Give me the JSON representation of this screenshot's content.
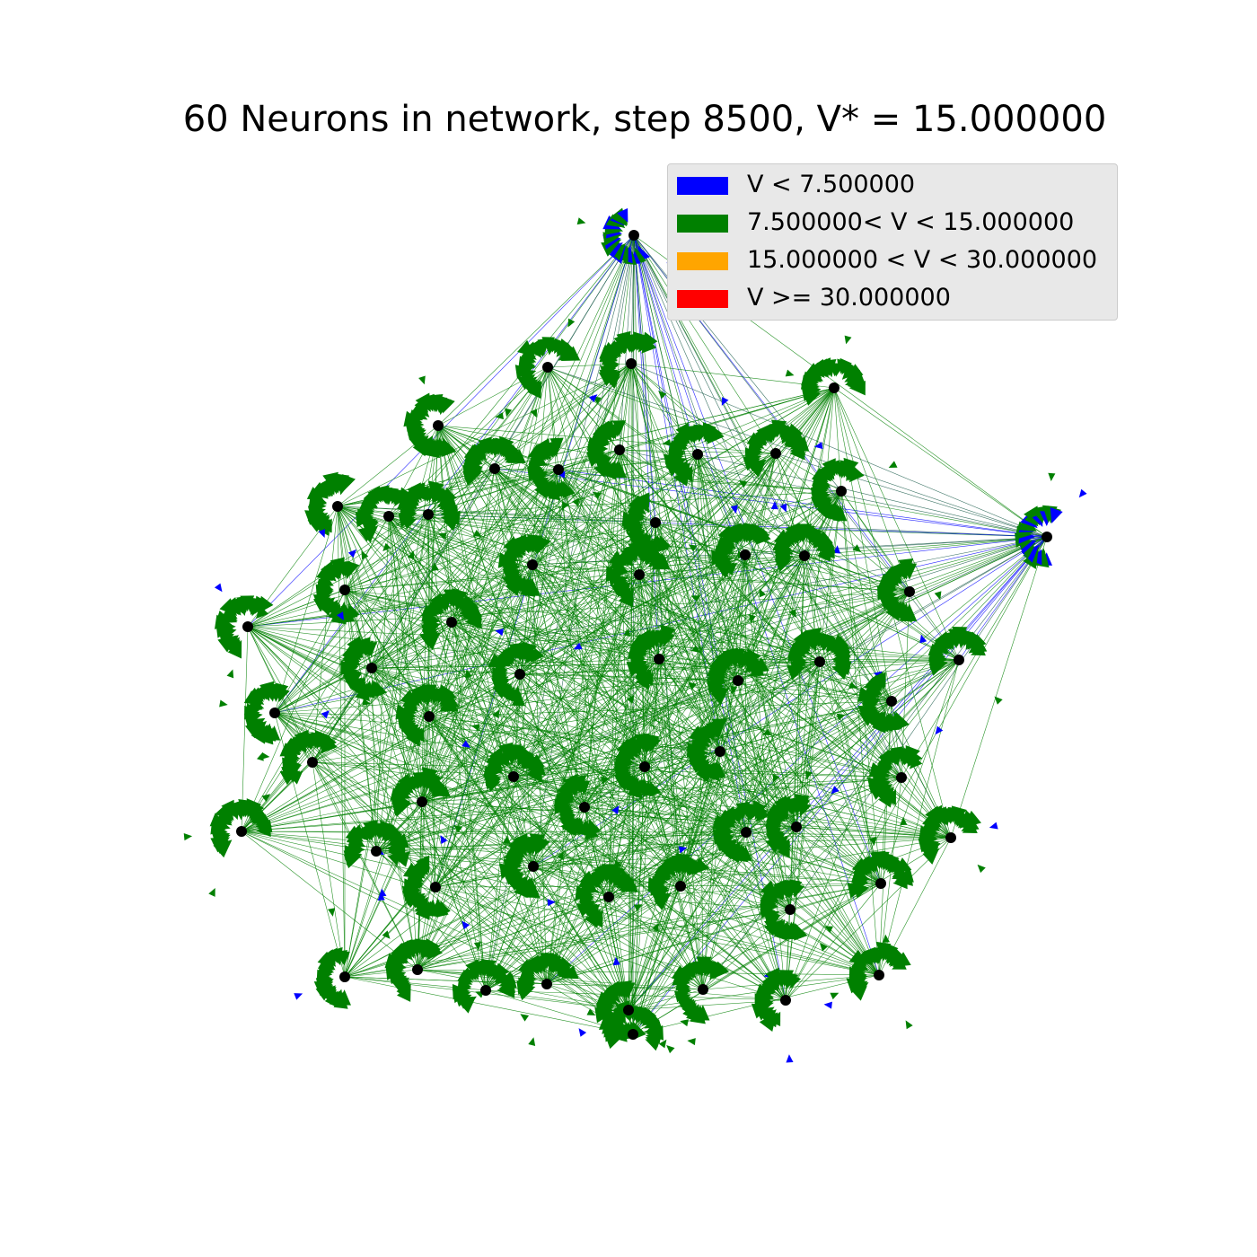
{
  "title": "60 Neurons in network, step 8500, V* = 15.000000",
  "legend": {
    "items": [
      {
        "label": "V < 7.500000",
        "color": "#0000ff"
      },
      {
        "label": "7.500000< V < 15.000000",
        "color": "#008000"
      },
      {
        "label": "15.000000 < V < 30.000000",
        "color": "#ffa500"
      },
      {
        "label": "V >= 30.000000",
        "color": "#ff0000"
      }
    ]
  },
  "colors": {
    "node": "#000000",
    "edge_main": "#008000",
    "edge_low": "#0000ff",
    "background": "#ffffff"
  }
}
